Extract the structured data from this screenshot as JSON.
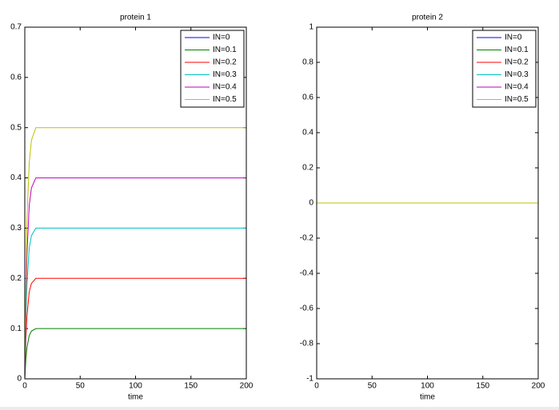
{
  "chart_data": [
    {
      "type": "line",
      "title": "protein 1",
      "x_label": "time",
      "x": [
        0,
        1,
        2,
        4,
        6,
        10,
        200
      ],
      "xlim": [
        0,
        200
      ],
      "xticks": [
        0,
        50,
        100,
        150,
        200
      ],
      "ylim": [
        0,
        0.7
      ],
      "yticks": [
        0,
        0.1,
        0.2,
        0.3,
        0.4,
        0.5,
        0.6,
        0.7
      ],
      "legend": "top-right",
      "series": [
        {
          "name": "IN=0",
          "color": "#0000ff",
          "values": [
            0,
            0,
            0,
            0,
            0,
            0,
            0
          ]
        },
        {
          "name": "IN=0.1",
          "color": "#008000",
          "values": [
            0,
            0.04,
            0.063,
            0.086,
            0.095,
            0.1,
            0.1
          ]
        },
        {
          "name": "IN=0.2",
          "color": "#ff0000",
          "values": [
            0,
            0.08,
            0.126,
            0.173,
            0.19,
            0.2,
            0.2
          ]
        },
        {
          "name": "IN=0.3",
          "color": "#00bfbf",
          "values": [
            0,
            0.12,
            0.19,
            0.26,
            0.285,
            0.3,
            0.3
          ]
        },
        {
          "name": "IN=0.4",
          "color": "#bf00bf",
          "values": [
            0,
            0.16,
            0.25,
            0.345,
            0.38,
            0.4,
            0.4
          ]
        },
        {
          "name": "IN=0.5",
          "color": "#bfbf00",
          "values": [
            0,
            0.2,
            0.32,
            0.43,
            0.475,
            0.5,
            0.5
          ]
        }
      ]
    },
    {
      "type": "line",
      "title": "protein 2",
      "x_label": "time",
      "x": [
        0,
        200
      ],
      "xlim": [
        0,
        200
      ],
      "xticks": [
        0,
        50,
        100,
        150,
        200
      ],
      "ylim": [
        -1,
        1
      ],
      "yticks": [
        -1,
        -0.8,
        -0.6,
        -0.4,
        -0.2,
        0,
        0.2,
        0.4,
        0.6,
        0.8,
        1
      ],
      "legend": "top-right",
      "series": [
        {
          "name": "IN=0",
          "color": "#0000ff",
          "values": [
            0,
            0
          ]
        },
        {
          "name": "IN=0.1",
          "color": "#008000",
          "values": [
            0,
            0
          ]
        },
        {
          "name": "IN=0.2",
          "color": "#ff0000",
          "values": [
            0,
            0
          ]
        },
        {
          "name": "IN=0.3",
          "color": "#00bfbf",
          "values": [
            0,
            0
          ]
        },
        {
          "name": "IN=0.4",
          "color": "#bf00bf",
          "values": [
            0,
            0
          ]
        },
        {
          "name": "IN=0.5",
          "color": "#bfbf00",
          "values": [
            0,
            0
          ]
        }
      ]
    }
  ]
}
